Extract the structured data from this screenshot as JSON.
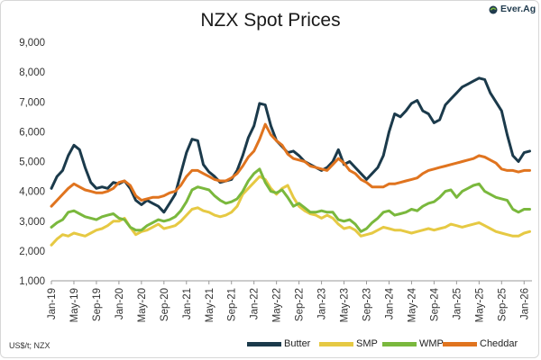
{
  "header": {
    "title": "NZX Spot Prices",
    "logo_text": "Ever.Ag"
  },
  "footer": {
    "source": "US$/t; NZX"
  },
  "chart_data": {
    "type": "line",
    "title": "NZX Spot Prices",
    "xlabel": "",
    "ylabel": "",
    "ylim": [
      1000,
      9000
    ],
    "xlim": [
      "2019-01",
      "2026-02"
    ],
    "grid": false,
    "legend_position": "bottom",
    "y_ticks": [
      "1,000",
      "2,000",
      "3,000",
      "4,000",
      "5,000",
      "6,000",
      "7,000",
      "8,000",
      "9,000"
    ],
    "x_ticks": [
      "Jan-19",
      "May-19",
      "Sep-19",
      "Jan-20",
      "May-20",
      "Sep-20",
      "Jan-21",
      "May-21",
      "Sep-21",
      "Jan-22",
      "May-22",
      "Sep-22",
      "Jan-23",
      "May-23",
      "Sep-23",
      "Jan-24",
      "May-24",
      "Sep-24",
      "Jan-25",
      "May-25",
      "Sep-25",
      "Jan-26"
    ],
    "x": [
      "2019-01",
      "2019-02",
      "2019-03",
      "2019-04",
      "2019-05",
      "2019-06",
      "2019-07",
      "2019-08",
      "2019-09",
      "2019-10",
      "2019-11",
      "2019-12",
      "2020-01",
      "2020-02",
      "2020-03",
      "2020-04",
      "2020-05",
      "2020-06",
      "2020-07",
      "2020-08",
      "2020-09",
      "2020-10",
      "2020-11",
      "2020-12",
      "2021-01",
      "2021-02",
      "2021-03",
      "2021-04",
      "2021-05",
      "2021-06",
      "2021-07",
      "2021-08",
      "2021-09",
      "2021-10",
      "2021-11",
      "2021-12",
      "2022-01",
      "2022-02",
      "2022-03",
      "2022-04",
      "2022-05",
      "2022-06",
      "2022-07",
      "2022-08",
      "2022-09",
      "2022-10",
      "2022-11",
      "2022-12",
      "2023-01",
      "2023-02",
      "2023-03",
      "2023-04",
      "2023-05",
      "2023-06",
      "2023-07",
      "2023-08",
      "2023-09",
      "2023-10",
      "2023-11",
      "2023-12",
      "2024-01",
      "2024-02",
      "2024-03",
      "2024-04",
      "2024-05",
      "2024-06",
      "2024-07",
      "2024-08",
      "2024-09",
      "2024-10",
      "2024-11",
      "2024-12",
      "2025-01",
      "2025-02",
      "2025-03",
      "2025-04",
      "2025-05",
      "2025-06",
      "2025-07",
      "2025-08",
      "2025-09",
      "2025-10",
      "2025-11",
      "2025-12",
      "2026-01",
      "2026-02"
    ],
    "series": [
      {
        "name": "Butter",
        "color": "#1b3a4b",
        "values": [
          4100,
          4500,
          4700,
          5200,
          5550,
          5400,
          4800,
          4300,
          4100,
          4150,
          4100,
          4300,
          4250,
          4350,
          4100,
          3700,
          3550,
          3700,
          3600,
          3500,
          3300,
          3600,
          3900,
          4600,
          5300,
          5750,
          5700,
          4900,
          4650,
          4500,
          4300,
          4350,
          4400,
          4700,
          5200,
          5800,
          6200,
          6950,
          6900,
          6200,
          5700,
          5500,
          5300,
          5350,
          5200,
          5000,
          4900,
          4800,
          4700,
          4800,
          5000,
          5400,
          4900,
          5000,
          4800,
          4600,
          4400,
          4600,
          4800,
          5200,
          6000,
          6600,
          6500,
          6700,
          6950,
          7050,
          6700,
          6600,
          6300,
          6400,
          6900,
          7100,
          7300,
          7500,
          7600,
          7700,
          7800,
          7750,
          7300,
          7000,
          6700,
          5900,
          5200,
          5000,
          5300,
          5350
        ]
      },
      {
        "name": "SMP",
        "color": "#e6c943",
        "values": [
          2200,
          2400,
          2550,
          2500,
          2600,
          2550,
          2500,
          2600,
          2700,
          2750,
          2850,
          3000,
          3000,
          3100,
          2800,
          2550,
          2650,
          2700,
          2800,
          2900,
          2750,
          2800,
          2850,
          3000,
          3200,
          3400,
          3450,
          3350,
          3300,
          3200,
          3150,
          3200,
          3300,
          3500,
          3900,
          4100,
          4300,
          4500,
          4400,
          4100,
          3900,
          4100,
          4200,
          3800,
          3500,
          3350,
          3250,
          3200,
          3100,
          3200,
          3100,
          2900,
          2750,
          2800,
          2700,
          2500,
          2550,
          2600,
          2700,
          2800,
          2750,
          2700,
          2700,
          2650,
          2600,
          2650,
          2700,
          2750,
          2700,
          2750,
          2800,
          2900,
          2850,
          2800,
          2850,
          2900,
          2950,
          2850,
          2750,
          2650,
          2600,
          2550,
          2500,
          2500,
          2600,
          2650
        ]
      },
      {
        "name": "WMP",
        "color": "#7ab83d",
        "values": [
          2800,
          2950,
          3050,
          3300,
          3350,
          3250,
          3150,
          3100,
          3050,
          3150,
          3200,
          3250,
          3100,
          3050,
          2800,
          2700,
          2700,
          2850,
          2950,
          3050,
          3000,
          3050,
          3150,
          3350,
          3650,
          4050,
          4150,
          4100,
          4050,
          3850,
          3700,
          3600,
          3650,
          3750,
          4000,
          4350,
          4600,
          4750,
          4300,
          4000,
          3950,
          4050,
          3800,
          3500,
          3600,
          3450,
          3300,
          3300,
          3350,
          3300,
          3300,
          3050,
          3000,
          3050,
          2900,
          2650,
          2750,
          2950,
          3100,
          3300,
          3350,
          3200,
          3250,
          3300,
          3400,
          3350,
          3500,
          3600,
          3650,
          3800,
          4000,
          4050,
          3800,
          4000,
          4100,
          4200,
          4250,
          4000,
          3900,
          3800,
          3750,
          3700,
          3400,
          3300,
          3400,
          3400
        ]
      },
      {
        "name": "Cheddar",
        "color": "#e0741f",
        "values": [
          3500,
          3700,
          3900,
          4100,
          4250,
          4150,
          4050,
          4000,
          3950,
          3950,
          4000,
          4100,
          4300,
          4350,
          4200,
          3850,
          3700,
          3750,
          3800,
          3800,
          3850,
          3950,
          4000,
          4200,
          4500,
          4700,
          4700,
          4600,
          4500,
          4400,
          4350,
          4350,
          4450,
          4600,
          4850,
          5150,
          5350,
          5750,
          6250,
          5900,
          5700,
          5550,
          5250,
          5100,
          5050,
          5000,
          4850,
          4800,
          4750,
          4700,
          4900,
          5100,
          4950,
          4700,
          4600,
          4400,
          4300,
          4150,
          4150,
          4150,
          4250,
          4250,
          4300,
          4350,
          4400,
          4450,
          4600,
          4700,
          4750,
          4800,
          4850,
          4900,
          4950,
          5000,
          5050,
          5100,
          5200,
          5150,
          5050,
          4950,
          4750,
          4700,
          4700,
          4650,
          4700,
          4700
        ]
      }
    ]
  }
}
